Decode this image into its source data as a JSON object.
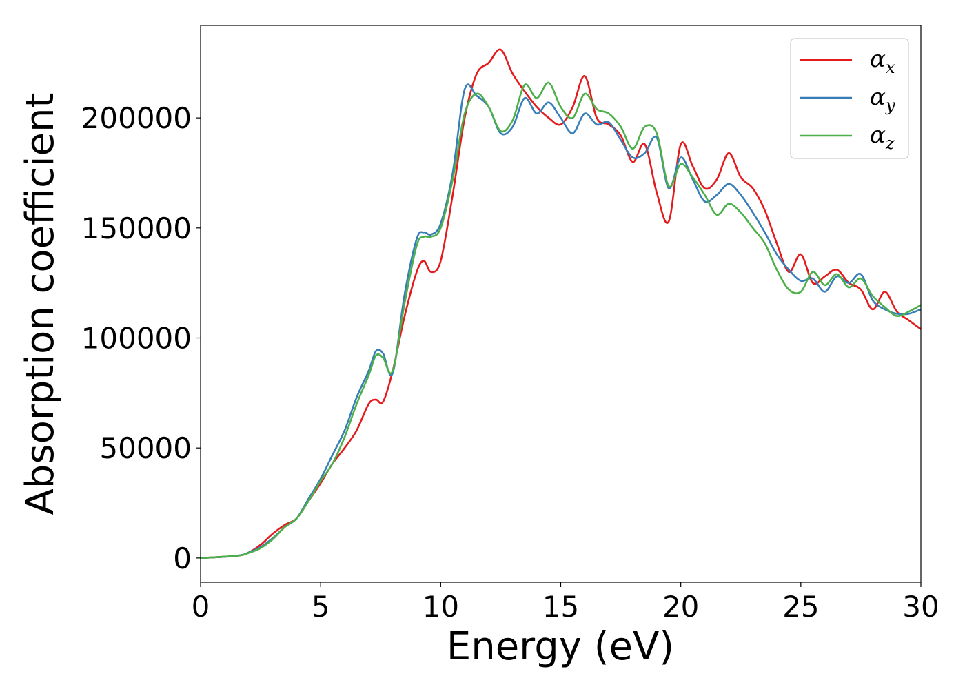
{
  "chart_data": {
    "type": "line",
    "title": "",
    "xlabel": "Energy (eV)",
    "ylabel": "Absorption coefficient",
    "xlim": [
      0,
      30
    ],
    "ylim": [
      -11000,
      242000
    ],
    "xticks": [
      0,
      5,
      10,
      15,
      20,
      25,
      30
    ],
    "xtick_labels": [
      "0",
      "5",
      "10",
      "15",
      "20",
      "25",
      "30"
    ],
    "yticks": [
      0,
      50000,
      100000,
      150000,
      200000
    ],
    "ytick_labels": [
      "0",
      "50000",
      "100000",
      "150000",
      "200000"
    ],
    "grid": false,
    "legend_position": "top-right",
    "series": [
      {
        "name": "α_x",
        "legend_base": "α",
        "legend_sub": "x",
        "color": "#e41a1c",
        "x": [
          0,
          1.5,
          2,
          2.5,
          3,
          3.5,
          4,
          4.5,
          5,
          5.5,
          6,
          6.5,
          7,
          7.3,
          7.6,
          8,
          8.5,
          9,
          9.3,
          9.6,
          10,
          10.5,
          11,
          11.5,
          12,
          12.5,
          13,
          13.5,
          14,
          14.5,
          15,
          15.5,
          16,
          16.5,
          17,
          17.5,
          18,
          18.5,
          19,
          19.5,
          20,
          20.5,
          21,
          21.5,
          22,
          22.5,
          23,
          23.5,
          24,
          24.5,
          25,
          25.5,
          26,
          26.5,
          27,
          27.5,
          28,
          28.5,
          29,
          29.5,
          30
        ],
        "y": [
          0,
          1000,
          2500,
          6000,
          11000,
          15000,
          18000,
          26000,
          34000,
          43000,
          50000,
          58000,
          70000,
          72000,
          71000,
          85000,
          110000,
          130000,
          135000,
          130000,
          135000,
          165000,
          200000,
          220000,
          225000,
          231000,
          220000,
          212000,
          205000,
          200000,
          197000,
          205000,
          219000,
          200000,
          197000,
          192000,
          180000,
          188000,
          166000,
          153000,
          188000,
          178000,
          168000,
          172000,
          184000,
          173000,
          168000,
          158000,
          143000,
          130000,
          138000,
          125000,
          128000,
          131000,
          125000,
          122000,
          113000,
          121000,
          112000,
          108000,
          104000
        ]
      },
      {
        "name": "α_y",
        "legend_base": "α",
        "legend_sub": "y",
        "color": "#377eb8",
        "x": [
          0,
          1.5,
          2,
          2.5,
          3,
          3.5,
          4,
          4.5,
          5,
          5.5,
          6,
          6.5,
          7,
          7.3,
          7.6,
          8,
          8.5,
          9,
          9.3,
          9.6,
          10,
          10.5,
          11,
          11.5,
          12,
          12.5,
          13,
          13.5,
          14,
          14.5,
          15,
          15.5,
          16,
          16.5,
          17,
          17.5,
          18,
          18.5,
          19,
          19.5,
          20,
          20.5,
          21,
          21.5,
          22,
          22.5,
          23,
          23.5,
          24,
          24.5,
          25,
          25.5,
          26,
          26.5,
          27,
          27.5,
          28,
          28.5,
          29,
          29.5,
          30
        ],
        "y": [
          0,
          1000,
          2500,
          5000,
          9000,
          14000,
          18000,
          27000,
          36000,
          47000,
          58000,
          73000,
          85000,
          94000,
          93000,
          84000,
          120000,
          145000,
          148000,
          147000,
          152000,
          175000,
          213000,
          210000,
          205000,
          193000,
          196000,
          209000,
          202000,
          207000,
          200000,
          193000,
          202000,
          197000,
          198000,
          190000,
          182000,
          184000,
          191000,
          168000,
          182000,
          172000,
          162000,
          165000,
          170000,
          165000,
          157000,
          148000,
          138000,
          131000,
          126000,
          127000,
          121000,
          128000,
          125000,
          129000,
          117000,
          113000,
          111000,
          111000,
          113000
        ]
      },
      {
        "name": "α_z",
        "legend_base": "α",
        "legend_sub": "z",
        "color": "#4daf4a",
        "x": [
          0,
          1.5,
          2,
          2.5,
          3,
          3.5,
          4,
          4.5,
          5,
          5.5,
          6,
          6.5,
          7,
          7.3,
          7.6,
          8,
          8.5,
          9,
          9.3,
          9.6,
          10,
          10.5,
          11,
          11.5,
          12,
          12.5,
          13,
          13.5,
          14,
          14.5,
          15,
          15.5,
          16,
          16.5,
          17,
          17.5,
          18,
          18.5,
          19,
          19.5,
          20,
          20.5,
          21,
          21.5,
          22,
          22.5,
          23,
          23.5,
          24,
          24.5,
          25,
          25.5,
          26,
          26.5,
          27,
          27.5,
          28,
          28.5,
          29,
          29.5,
          30
        ],
        "y": [
          0,
          1000,
          2300,
          4500,
          8500,
          14000,
          18000,
          26000,
          35000,
          43000,
          55000,
          70000,
          83000,
          92000,
          91000,
          85000,
          116000,
          142000,
          146000,
          146000,
          150000,
          172000,
          202000,
          211000,
          205000,
          194000,
          199000,
          215000,
          209000,
          216000,
          205000,
          200000,
          211000,
          204000,
          202000,
          196000,
          186000,
          196000,
          193000,
          169000,
          179000,
          173000,
          165000,
          156000,
          161000,
          157000,
          150000,
          143000,
          131000,
          122000,
          121000,
          130000,
          124000,
          129000,
          123000,
          127000,
          119000,
          114000,
          110000,
          112000,
          115000
        ]
      }
    ]
  }
}
